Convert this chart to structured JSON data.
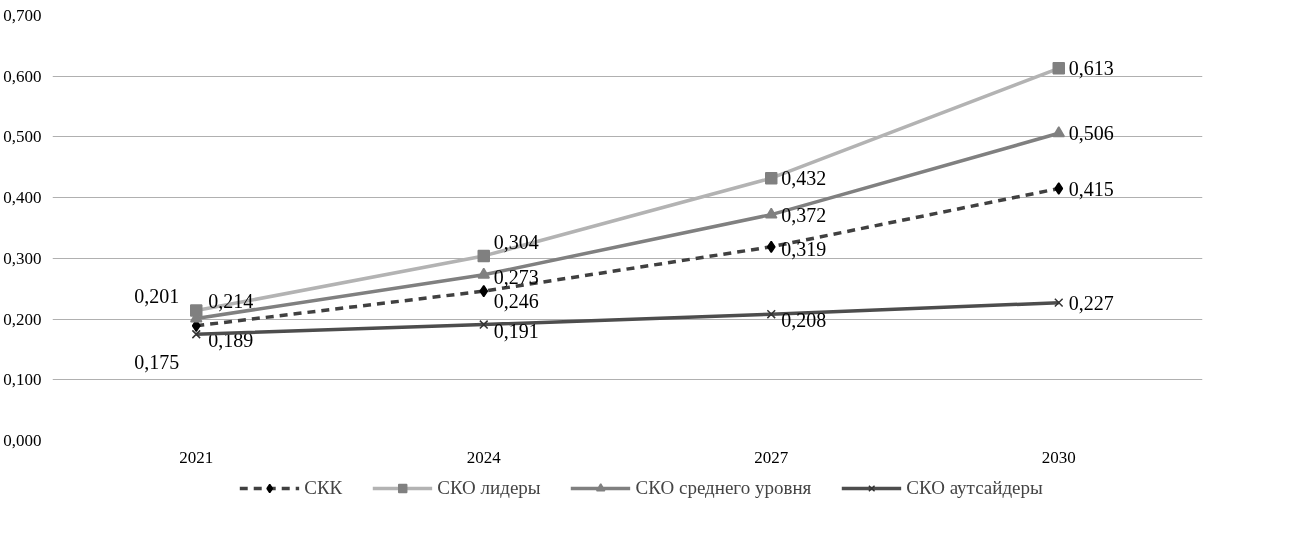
{
  "chart_data": {
    "type": "line",
    "categories": [
      "2021",
      "2024",
      "2027",
      "2030"
    ],
    "series": [
      {
        "name": "СКК",
        "color": "#404040",
        "marker": "diamond",
        "line_style": "dashed",
        "values": [
          0.189,
          0.246,
          0.319,
          0.415
        ],
        "value_labels": [
          "0,189",
          "0,246",
          "0,319",
          "0,415"
        ]
      },
      {
        "name": "СКО лидеры",
        "color": "#b3b3b3",
        "marker": "square",
        "line_style": "solid",
        "values": [
          0.214,
          0.304,
          0.432,
          0.613
        ],
        "value_labels": [
          "0,214",
          "0,304",
          "0,432",
          "0,613"
        ]
      },
      {
        "name": "СКО среднего уровня",
        "color": "#808080",
        "marker": "triangle",
        "line_style": "solid",
        "values": [
          0.201,
          0.273,
          0.372,
          0.506
        ],
        "value_labels": [
          "0,201",
          "0,273",
          "0,372",
          "0,506"
        ]
      },
      {
        "name": "СКО аутсайдеры",
        "color": "#4d4d4d",
        "marker": "cross",
        "line_style": "solid",
        "values": [
          0.175,
          0.191,
          0.208,
          0.227
        ],
        "value_labels": [
          "0,175",
          "0,191",
          "0,208",
          "0,227"
        ]
      }
    ],
    "ylim": [
      0,
      0.7
    ],
    "yticks": [
      {
        "value": 0,
        "label": "0,000"
      },
      {
        "value": 0.1,
        "label": "0,100"
      },
      {
        "value": 0.2,
        "label": "0,200"
      },
      {
        "value": 0.3,
        "label": "0,300"
      },
      {
        "value": 0.4,
        "label": "0,400"
      },
      {
        "value": 0.5,
        "label": "0,500"
      },
      {
        "value": 0.6,
        "label": "0,600"
      },
      {
        "value": 0.7,
        "label": "0,700"
      }
    ],
    "grid": "y",
    "legend": "bottom"
  }
}
